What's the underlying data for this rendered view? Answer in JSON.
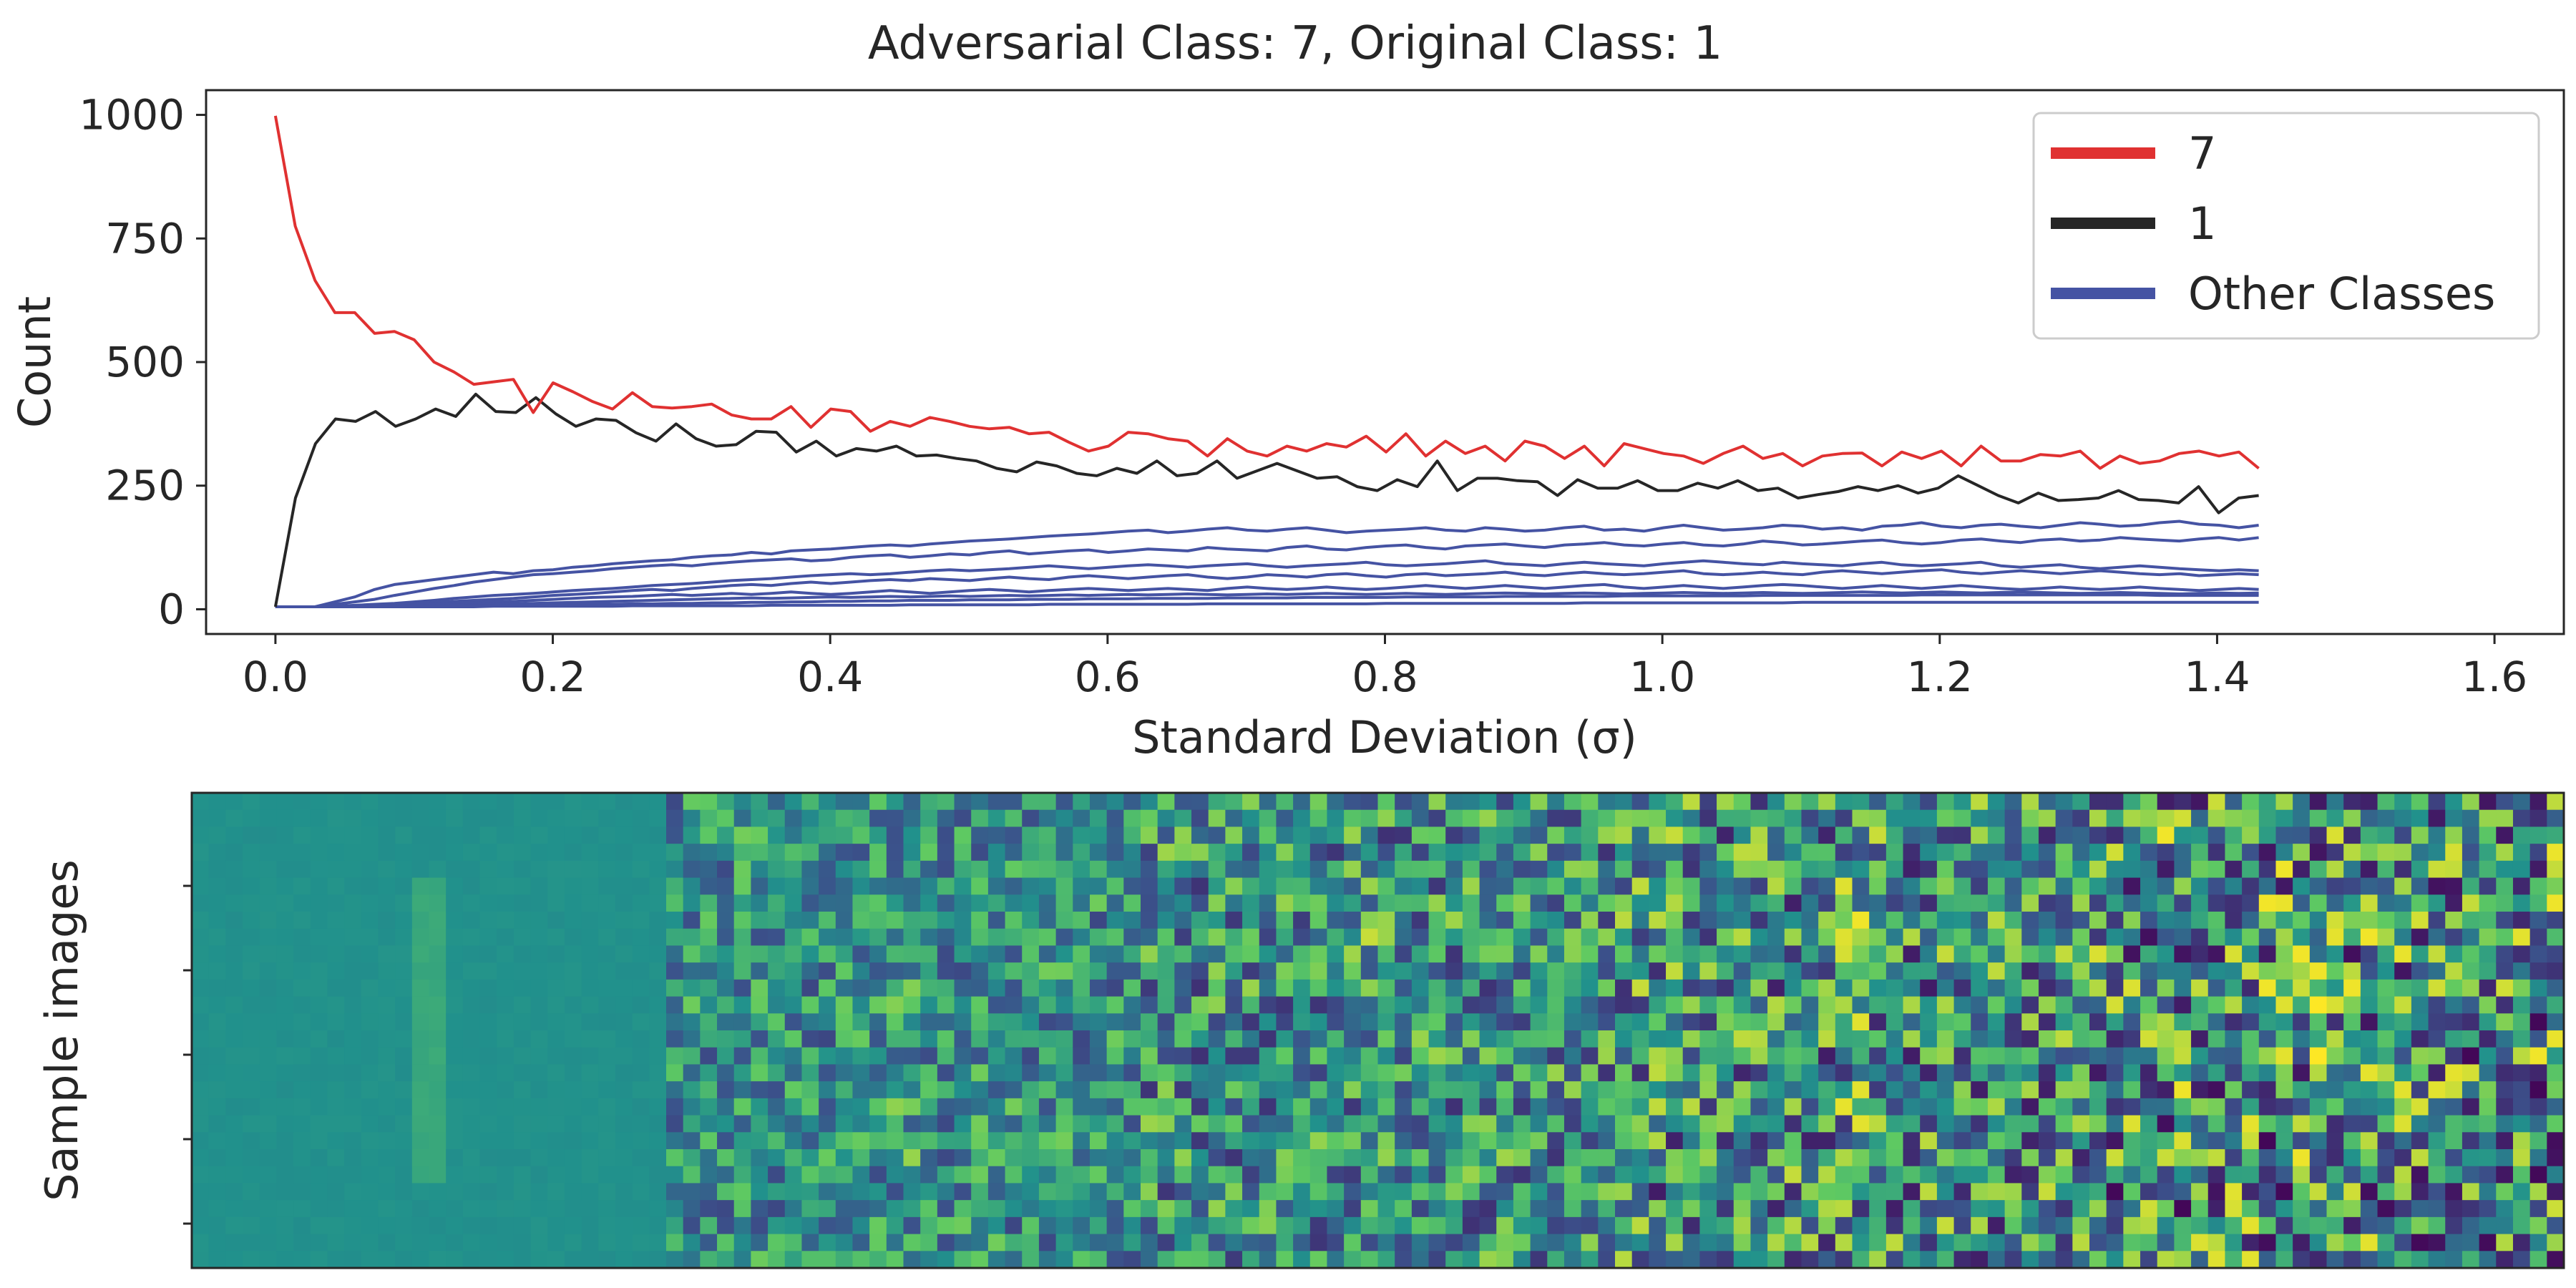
{
  "figure": {
    "title": "Adversarial Class: 7, Original Class: 1"
  },
  "chart_data": [
    {
      "type": "line",
      "title": "Adversarial Class: 7, Original Class: 1",
      "xlabel": "Standard Deviation (σ)",
      "ylabel": "Count",
      "xlim": [
        -0.05,
        1.65
      ],
      "ylim": [
        -50,
        1050
      ],
      "xticks": [
        "0.0",
        "0.2",
        "0.4",
        "0.6",
        "0.8",
        "1.0",
        "1.2",
        "1.4",
        "1.6"
      ],
      "yticks": [
        "0",
        "250",
        "500",
        "750",
        "1000"
      ],
      "grid": false,
      "legend_position": "top-right",
      "legend": [
        {
          "label": "7",
          "color": "#e03131"
        },
        {
          "label": "1",
          "color": "#262626"
        },
        {
          "label": "Other Classes",
          "color": "#4553a3"
        }
      ],
      "x_start": 0.0,
      "x_end": 1.43,
      "series": [
        {
          "name": "7",
          "color": "#e03131",
          "values": [
            998,
            775,
            665,
            600,
            600,
            558,
            562,
            545,
            500,
            480,
            455,
            460,
            465,
            398,
            458,
            440,
            420,
            405,
            438,
            410,
            407,
            410,
            415,
            393,
            385,
            385,
            410,
            368,
            405,
            400,
            360,
            380,
            370,
            388,
            380,
            370,
            365,
            368,
            355,
            358,
            338,
            320,
            330,
            358,
            355,
            345,
            340,
            310,
            345,
            320,
            310,
            330,
            320,
            335,
            328,
            350,
            318,
            355,
            310,
            340,
            315,
            330,
            300,
            340,
            330,
            305,
            330,
            290,
            335,
            325,
            315,
            310,
            295,
            315,
            330,
            305,
            315,
            290,
            310,
            315,
            316,
            290,
            318,
            305,
            320,
            290,
            330,
            300,
            300,
            313,
            310,
            320,
            285,
            310,
            295,
            300,
            315,
            320,
            310,
            318,
            285
          ]
        },
        {
          "name": "1",
          "color": "#262626",
          "values": [
            5,
            225,
            335,
            385,
            380,
            400,
            370,
            385,
            405,
            390,
            435,
            400,
            398,
            428,
            395,
            370,
            385,
            382,
            357,
            340,
            375,
            345,
            330,
            333,
            360,
            358,
            318,
            340,
            310,
            325,
            320,
            330,
            310,
            312,
            305,
            300,
            285,
            278,
            298,
            290,
            275,
            270,
            285,
            275,
            300,
            270,
            275,
            300,
            265,
            280,
            295,
            280,
            265,
            268,
            248,
            240,
            262,
            248,
            300,
            240,
            265,
            265,
            260,
            258,
            230,
            262,
            245,
            245,
            260,
            240,
            240,
            255,
            245,
            260,
            240,
            245,
            225,
            232,
            238,
            248,
            240,
            250,
            235,
            245,
            270,
            250,
            230,
            215,
            235,
            220,
            222,
            225,
            240,
            222,
            220,
            215,
            248,
            195,
            225,
            230
          ]
        },
        {
          "name": "",
          "color": "#4553a3",
          "values": [
            5,
            5,
            5,
            15,
            25,
            40,
            50,
            55,
            60,
            65,
            70,
            75,
            72,
            78,
            80,
            85,
            88,
            92,
            95,
            98,
            100,
            105,
            108,
            110,
            115,
            112,
            118,
            120,
            122,
            125,
            128,
            130,
            128,
            132,
            135,
            138,
            140,
            142,
            145,
            148,
            150,
            152,
            155,
            158,
            160,
            155,
            158,
            162,
            165,
            160,
            158,
            162,
            165,
            160,
            155,
            158,
            160,
            162,
            165,
            160,
            158,
            165,
            162,
            158,
            160,
            165,
            168,
            160,
            162,
            158,
            165,
            170,
            165,
            160,
            162,
            165,
            170,
            168,
            162,
            165,
            160,
            168,
            170,
            175,
            168,
            165,
            170,
            172,
            168,
            165,
            170,
            175,
            172,
            168,
            170,
            175,
            178,
            172,
            170,
            165,
            170
          ]
        },
        {
          "name": "",
          "color": "#4553a3",
          "values": [
            5,
            5,
            5,
            10,
            15,
            20,
            28,
            35,
            42,
            48,
            55,
            60,
            65,
            70,
            72,
            75,
            78,
            82,
            85,
            88,
            90,
            88,
            92,
            95,
            98,
            100,
            102,
            98,
            100,
            105,
            108,
            110,
            105,
            108,
            112,
            110,
            115,
            118,
            112,
            115,
            118,
            120,
            115,
            118,
            122,
            120,
            118,
            125,
            122,
            120,
            118,
            125,
            128,
            122,
            120,
            125,
            128,
            130,
            125,
            122,
            128,
            130,
            132,
            128,
            125,
            130,
            132,
            135,
            130,
            128,
            132,
            135,
            130,
            128,
            132,
            138,
            135,
            130,
            132,
            135,
            138,
            140,
            135,
            132,
            135,
            140,
            142,
            138,
            135,
            140,
            142,
            138,
            140,
            145,
            142,
            140,
            138,
            142,
            145,
            140,
            145
          ]
        },
        {
          "name": "",
          "color": "#4553a3",
          "values": [
            5,
            5,
            5,
            6,
            8,
            10,
            12,
            15,
            18,
            22,
            25,
            28,
            30,
            32,
            35,
            38,
            40,
            42,
            45,
            48,
            50,
            52,
            55,
            58,
            60,
            62,
            65,
            68,
            70,
            72,
            70,
            72,
            75,
            78,
            80,
            78,
            80,
            82,
            85,
            88,
            85,
            82,
            85,
            88,
            90,
            88,
            85,
            88,
            90,
            92,
            88,
            85,
            88,
            90,
            92,
            95,
            90,
            88,
            90,
            92,
            95,
            98,
            92,
            90,
            88,
            92,
            95,
            92,
            90,
            88,
            92,
            95,
            98,
            95,
            92,
            90,
            95,
            92,
            90,
            88,
            92,
            95,
            90,
            88,
            90,
            92,
            95,
            88,
            85,
            88,
            90,
            85,
            82,
            85,
            88,
            85,
            82,
            80,
            78,
            80,
            78
          ]
        },
        {
          "name": "",
          "color": "#4553a3",
          "values": [
            5,
            5,
            5,
            5,
            6,
            8,
            10,
            12,
            14,
            16,
            18,
            20,
            22,
            25,
            28,
            30,
            32,
            35,
            38,
            40,
            38,
            42,
            45,
            48,
            50,
            48,
            52,
            55,
            52,
            55,
            58,
            60,
            58,
            62,
            60,
            58,
            62,
            65,
            62,
            60,
            65,
            68,
            65,
            62,
            65,
            68,
            70,
            65,
            62,
            65,
            70,
            68,
            65,
            70,
            72,
            68,
            65,
            70,
            72,
            68,
            70,
            72,
            75,
            70,
            68,
            72,
            75,
            72,
            70,
            72,
            75,
            78,
            72,
            70,
            72,
            75,
            72,
            70,
            75,
            78,
            75,
            72,
            75,
            78,
            80,
            75,
            72,
            75,
            78,
            75,
            72,
            75,
            78,
            75,
            72,
            70,
            72,
            68,
            70,
            72,
            70
          ]
        },
        {
          "name": "",
          "color": "#4553a3",
          "values": [
            5,
            5,
            5,
            5,
            5,
            6,
            7,
            8,
            10,
            12,
            13,
            15,
            16,
            18,
            20,
            22,
            24,
            25,
            26,
            28,
            30,
            28,
            30,
            32,
            30,
            32,
            35,
            32,
            30,
            32,
            35,
            38,
            35,
            32,
            35,
            38,
            40,
            38,
            35,
            38,
            40,
            42,
            40,
            38,
            40,
            42,
            40,
            38,
            42,
            45,
            42,
            40,
            42,
            45,
            42,
            40,
            42,
            45,
            48,
            45,
            42,
            45,
            48,
            45,
            42,
            45,
            48,
            50,
            45,
            42,
            45,
            48,
            45,
            42,
            45,
            48,
            50,
            48,
            45,
            42,
            45,
            48,
            45,
            42,
            45,
            48,
            45,
            42,
            40,
            42,
            45,
            42,
            40,
            42,
            45,
            42,
            40,
            38,
            40,
            42,
            40
          ]
        },
        {
          "name": "",
          "color": "#4553a3",
          "values": [
            5,
            5,
            5,
            5,
            5,
            5,
            6,
            6,
            7,
            8,
            9,
            10,
            11,
            12,
            13,
            14,
            15,
            16,
            17,
            18,
            19,
            20,
            21,
            22,
            23,
            22,
            23,
            24,
            25,
            24,
            25,
            26,
            25,
            26,
            27,
            26,
            27,
            28,
            27,
            28,
            29,
            28,
            29,
            30,
            29,
            30,
            31,
            30,
            29,
            30,
            31,
            30,
            31,
            32,
            31,
            30,
            31,
            32,
            31,
            30,
            31,
            32,
            33,
            32,
            31,
            32,
            33,
            32,
            31,
            32,
            33,
            34,
            33,
            32,
            33,
            34,
            33,
            32,
            33,
            34,
            35,
            34,
            33,
            34,
            35,
            34,
            33,
            34,
            35,
            34,
            33,
            32,
            33,
            34,
            33,
            32,
            31,
            32,
            33,
            32,
            33
          ]
        },
        {
          "name": "",
          "color": "#4553a3",
          "values": [
            5,
            5,
            5,
            5,
            5,
            5,
            5,
            6,
            6,
            6,
            7,
            7,
            8,
            8,
            9,
            9,
            10,
            10,
            11,
            11,
            12,
            12,
            13,
            13,
            14,
            14,
            15,
            15,
            16,
            16,
            17,
            17,
            18,
            18,
            18,
            19,
            19,
            19,
            20,
            20,
            20,
            21,
            21,
            21,
            22,
            22,
            22,
            22,
            23,
            23,
            23,
            23,
            24,
            24,
            24,
            24,
            24,
            25,
            25,
            25,
            25,
            25,
            26,
            26,
            26,
            26,
            26,
            26,
            27,
            27,
            27,
            27,
            27,
            27,
            27,
            28,
            28,
            28,
            28,
            28,
            28,
            28,
            28,
            29,
            29,
            29,
            29,
            29,
            29,
            29,
            29,
            29,
            29,
            29,
            29,
            28,
            28,
            28,
            28,
            28,
            28
          ]
        },
        {
          "name": "",
          "color": "#4553a3",
          "values": [
            5,
            5,
            5,
            5,
            5,
            5,
            5,
            5,
            5,
            5,
            5,
            6,
            6,
            6,
            6,
            6,
            6,
            6,
            7,
            7,
            7,
            7,
            7,
            7,
            7,
            8,
            8,
            8,
            8,
            8,
            8,
            8,
            9,
            9,
            9,
            9,
            9,
            9,
            9,
            10,
            10,
            10,
            10,
            10,
            10,
            10,
            10,
            11,
            11,
            11,
            11,
            11,
            11,
            11,
            11,
            11,
            12,
            12,
            12,
            12,
            12,
            12,
            12,
            12,
            12,
            12,
            13,
            13,
            13,
            13,
            13,
            13,
            13,
            13,
            13,
            13,
            13,
            14,
            14,
            14,
            14,
            14,
            14,
            14,
            14,
            14,
            14,
            14,
            14,
            14,
            14,
            14,
            14,
            14,
            14,
            14,
            14,
            14,
            14,
            14,
            14
          ]
        }
      ]
    },
    {
      "type": "heatmap",
      "ylabel": "Sample images",
      "colormap": "viridis",
      "description_rows": 28,
      "description_cols": 140
    }
  ]
}
